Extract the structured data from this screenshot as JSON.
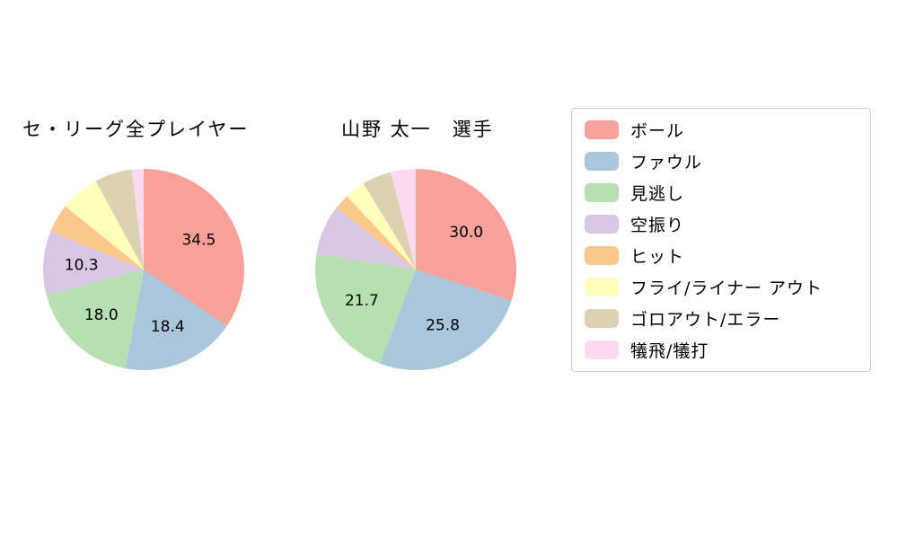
{
  "charts": {
    "left_title": "セ・リーグ全プレイヤー",
    "right_title": "山野 太一　選手"
  },
  "legend": {
    "items": [
      {
        "label": "ボール",
        "color": "#f8a19a"
      },
      {
        "label": "ファウル",
        "color": "#a9c6db"
      },
      {
        "label": "見逃し",
        "color": "#b7dfb1"
      },
      {
        "label": "空振り",
        "color": "#d8c7e3"
      },
      {
        "label": "ヒット",
        "color": "#fbc88b"
      },
      {
        "label": "フライ/ライナー アウト",
        "color": "#ffffbb"
      },
      {
        "label": "ゴロアウト/エラー",
        "color": "#dcd2b2"
      },
      {
        "label": "犠飛/犠打",
        "color": "#fbd9ee"
      }
    ]
  },
  "chart_data": [
    {
      "type": "pie",
      "title": "セ・リーグ全プレイヤー",
      "labels": [
        "ボール",
        "ファウル",
        "見逃し",
        "空振り",
        "ヒット",
        "フライ/ライナー アウト",
        "ゴロアウト/エラー",
        "犠飛/犠打"
      ],
      "values": [
        34.5,
        18.4,
        18.0,
        10.3,
        4.6,
        6.3,
        6.0,
        1.9
      ],
      "label_threshold": 10,
      "start_angle_deg": 90,
      "clockwise": true,
      "value_format": "one_decimal",
      "legend_position": "right"
    },
    {
      "type": "pie",
      "title": "山野 太一　選手",
      "labels": [
        "ボール",
        "ファウル",
        "見逃し",
        "空振り",
        "ヒット",
        "フライ/ライナー アウト",
        "ゴロアウト/エラー",
        "犠飛/犠打"
      ],
      "values": [
        30.0,
        25.8,
        21.7,
        8.0,
        2.5,
        3.3,
        4.7,
        4.0
      ],
      "label_threshold": 10,
      "start_angle_deg": 90,
      "clockwise": true,
      "value_format": "one_decimal",
      "legend_position": "right"
    }
  ]
}
